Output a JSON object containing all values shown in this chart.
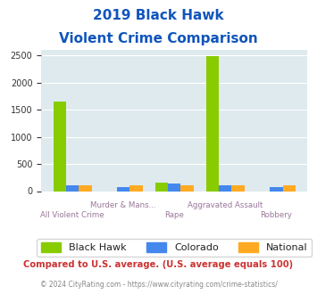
{
  "title_line1": "2019 Black Hawk",
  "title_line2": "Violent Crime Comparison",
  "categories": [
    "All Violent Crime",
    "Murder & Mans...",
    "Rape",
    "Aggravated Assault",
    "Robbery"
  ],
  "black_hawk": [
    1650,
    0,
    150,
    2480,
    0
  ],
  "colorado": [
    100,
    80,
    140,
    100,
    80
  ],
  "national": [
    100,
    100,
    100,
    100,
    100
  ],
  "colors": {
    "black_hawk": "#88cc00",
    "colorado": "#4488ee",
    "national": "#ffaa22"
  },
  "ylim": [
    0,
    2600
  ],
  "yticks": [
    0,
    500,
    1000,
    1500,
    2000,
    2500
  ],
  "plot_bg": "#deeaed",
  "title_color": "#1155bb",
  "xlabel_color": "#997799",
  "legend_labels": [
    "Black Hawk",
    "Colorado",
    "National"
  ],
  "footnote": "Compared to U.S. average. (U.S. average equals 100)",
  "copyright": "© 2024 CityRating.com - https://www.cityrating.com/crime-statistics/",
  "footnote_color": "#cc3333",
  "copyright_color": "#888888",
  "bar_width": 0.25,
  "top_labels": [
    "",
    "Murder & Mans...",
    "",
    "Aggravated Assault",
    ""
  ],
  "bottom_labels": [
    "All Violent Crime",
    "",
    "Rape",
    "",
    "Robbery"
  ]
}
